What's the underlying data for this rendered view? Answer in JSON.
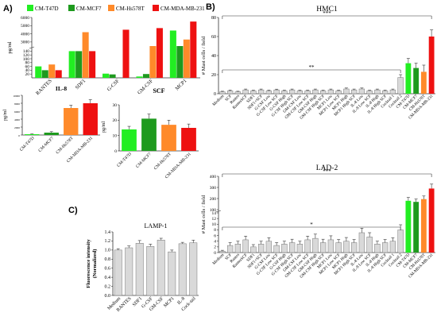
{
  "colors": {
    "t47d": "#22ee22",
    "mcf7": "#1e9a1e",
    "hs578t": "#ff8a2a",
    "mda": "#ee1111",
    "control": "#d9d9d9",
    "line": "#333333"
  },
  "panels": {
    "a": "A)",
    "b": "B)",
    "c": "C)"
  },
  "legend_a": [
    "CM-T47D",
    "CM-MCF7",
    "CM-Hs578T",
    "CM-MDA-MB-231"
  ],
  "chart_data": [
    {
      "id": "a-top",
      "type": "bar",
      "ylabel": "pg/ml",
      "categories": [
        "RANTES",
        "SDF1",
        "G-CSF",
        "GM-CSF",
        "MCP1"
      ],
      "yticks": [
        "20",
        "40",
        "60",
        "80",
        "100",
        "120",
        "140",
        "3000",
        "4000",
        "5000",
        "6000"
      ],
      "series": [
        {
          "name": "CM-T47D",
          "values": [
            60,
            140,
            22,
            7,
            4400
          ]
        },
        {
          "name": "CM-MCF7",
          "values": [
            40,
            140,
            18,
            20,
            180
          ]
        },
        {
          "name": "CM-Hs578T",
          "values": [
            70,
            4200,
            null,
            160,
            3300
          ]
        },
        {
          "name": "CM-MDA-MB-231",
          "values": [
            40,
            140,
            4500,
            4700,
            5500
          ]
        }
      ]
    },
    {
      "id": "a-il8",
      "type": "bar",
      "title": "IL-8",
      "ylabel": "pg/ml",
      "yticks": [
        "0",
        "2000",
        "4000",
        "6000",
        "8000",
        "10000"
      ],
      "ylim": [
        0,
        10000
      ],
      "categories": [
        "CM-T47D",
        "CM-MCF7",
        "CM-Hs578T",
        "CM-MDA-MB-231"
      ],
      "values": [
        200,
        600,
        6800,
        8000
      ],
      "errors": [
        80,
        250,
        700,
        900
      ]
    },
    {
      "id": "a-scf",
      "type": "bar",
      "title": "SCF",
      "ylabel": "pg/ml",
      "yticks": [
        "0",
        "10",
        "20",
        "30"
      ],
      "ylim": [
        0,
        30
      ],
      "categories": [
        "CM-T47D",
        "CM-MCF7",
        "CM-Hs578T",
        "CM-MDA-MB-231"
      ],
      "values": [
        14,
        21,
        17,
        15
      ],
      "errors": [
        2,
        3,
        3,
        2.5
      ]
    },
    {
      "id": "b-hmc1",
      "type": "bar",
      "title": "HMC1",
      "ylabel": "# Mast cells / field",
      "yticks": [
        "0",
        "20",
        "40",
        "60",
        "80"
      ],
      "ylim": [
        0,
        80
      ],
      "categories": [
        "Medium",
        "SCF",
        "Rantes",
        "RantesSCF",
        "SDF1",
        "SDF1+SCF",
        "G-CSF Low",
        "G-CSF Low SCF",
        "G-CSF High",
        "G-CSF High SCF",
        "GM-CSF Low",
        "GM-CSF Low SCF",
        "GM-CSF High",
        "GM-CSF High SCF",
        "MCP1 Low",
        "MCP1 Low SCF",
        "MCP1 High",
        "MCP1 High SCF",
        "IL-8 Low",
        "IL-8 Low SCF",
        "IL-8 High",
        "IL-8 High SCF",
        "Cocktail 1",
        "Cocktail 2",
        "CM-T47D",
        "CM-MCF7",
        "CM-Hs578T",
        "CM-MDA-MB-231"
      ],
      "values": [
        2,
        3,
        2,
        4,
        3,
        4,
        3,
        4,
        3,
        4,
        3,
        3,
        4,
        3,
        4,
        3,
        5,
        4,
        5,
        3,
        4,
        3,
        4,
        17,
        32,
        27,
        23,
        60
      ],
      "errors": [
        0.6,
        0.8,
        0.6,
        0.9,
        0.7,
        0.9,
        0.7,
        0.8,
        0.7,
        0.9,
        0.7,
        0.7,
        0.9,
        0.7,
        0.9,
        0.7,
        1,
        0.9,
        1,
        0.7,
        0.9,
        0.7,
        0.9,
        3,
        5,
        5,
        7,
        7
      ],
      "significance": [
        "***",
        "**"
      ]
    },
    {
      "id": "b-lad2",
      "type": "bar",
      "title": "LAD-2",
      "ylabel": "# Mast cells / field",
      "yticks": [
        "0",
        "2",
        "4",
        "6",
        "8",
        "10",
        "12",
        "14",
        "100",
        "200",
        "300",
        "400"
      ],
      "categories": [
        "Medium",
        "SCF",
        "Rantes",
        "RantesSCF",
        "SDF1",
        "SDF1+SCF",
        "G-CSF Low",
        "G-CSF Low SCF",
        "G-CSF High",
        "G-CSF High SCF",
        "GM-CSF Low",
        "GM-CSF Low SCF",
        "GM-CSF High",
        "GM-CSF High SCF",
        "MCP1 Low",
        "MCP1 Low SCF",
        "MCP1 High",
        "MCP1 High SCF",
        "IL-8 Low",
        "IL-8 Low SCF",
        "IL-8 High",
        "IL-8 High SCF",
        "Cocktail 1",
        "Cocktail 2",
        "CM-T47D",
        "CM-MCF7",
        "CM-Hs578T",
        "CM-MDA-MB-231"
      ],
      "values": [
        0.5,
        2.5,
        3,
        4.5,
        2,
        3,
        4,
        2.5,
        3,
        3.5,
        3,
        4.5,
        5,
        3.5,
        4.5,
        3.5,
        4,
        3.5,
        7,
        5.5,
        3,
        3.5,
        4,
        8,
        180,
        170,
        195,
        290
      ],
      "errors": [
        0.3,
        1,
        1,
        1.3,
        0.8,
        1,
        1.2,
        1,
        1,
        1.2,
        1,
        1.3,
        1.5,
        1.2,
        1.4,
        1.1,
        1.3,
        1.1,
        1.6,
        1.5,
        1,
        1.1,
        1.2,
        1.8,
        30,
        25,
        28,
        40
      ],
      "significance": [
        "***",
        "*"
      ]
    },
    {
      "id": "c-lamp1",
      "type": "bar",
      "title": "LAMP-1",
      "ylabel": "Fluorescence intensity\n(Normalized)",
      "yticks": [
        "0.0",
        "0.2",
        "0.4",
        "0.6",
        "0.8",
        "1.0",
        "1.2",
        "1.4"
      ],
      "ylim": [
        0,
        1.4
      ],
      "categories": [
        "Medium",
        "RANTES",
        "SDF1",
        "G-CSF",
        "GM-CSF",
        "MCP1",
        "IL-8",
        "Cock-tail"
      ],
      "values": [
        1.0,
        1.05,
        1.15,
        1.08,
        1.22,
        0.96,
        1.14,
        1.16
      ],
      "errors": [
        0.03,
        0.04,
        0.06,
        0.05,
        0.04,
        0.04,
        0.03,
        0.06
      ]
    }
  ]
}
